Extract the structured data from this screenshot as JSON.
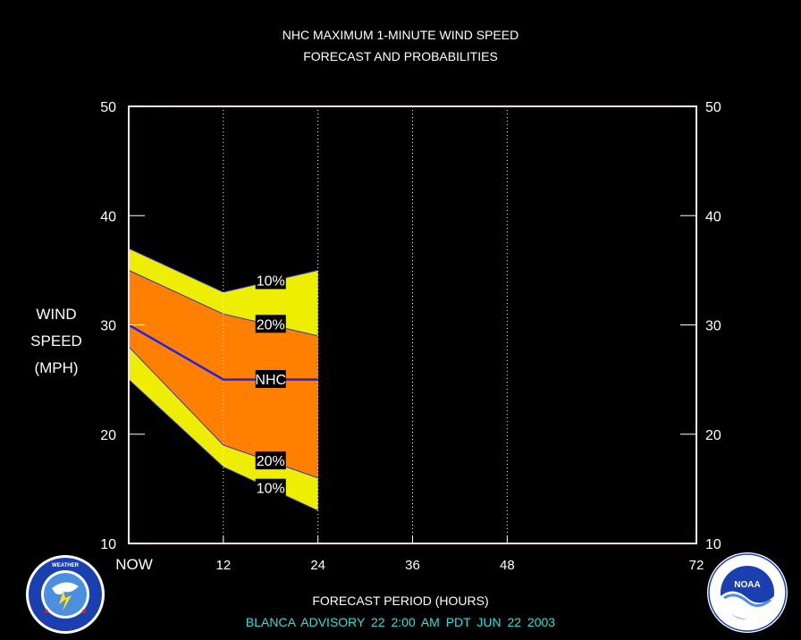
{
  "chart_data": {
    "type": "area",
    "title": "NHC MAXIMUM 1-MINUTE WIND SPEED",
    "subtitle": "FORECAST AND PROBABILITIES",
    "ylabel_lines": [
      "WIND",
      "SPEED",
      "(MPH)"
    ],
    "xlabel": "FORECAST PERIOD (HOURS)",
    "xlim": [
      0,
      72
    ],
    "ylim": [
      10,
      50
    ],
    "xticks": [
      {
        "value": 0,
        "label": "NOW"
      },
      {
        "value": 12,
        "label": "12"
      },
      {
        "value": 24,
        "label": "24"
      },
      {
        "value": 36,
        "label": "36"
      },
      {
        "value": 48,
        "label": "48"
      },
      {
        "value": 72,
        "label": "72"
      }
    ],
    "yticks": [
      10,
      20,
      30,
      40,
      50
    ],
    "vertical_gridlines": [
      12,
      24,
      36,
      48
    ],
    "x": [
      0,
      12,
      24
    ],
    "bands": [
      {
        "name": "10%",
        "lower": [
          25,
          17,
          13
        ],
        "upper": [
          37,
          33,
          35
        ],
        "color": "#eeee00"
      },
      {
        "name": "20%",
        "lower": [
          28,
          19,
          16
        ],
        "upper": [
          35,
          31,
          29
        ],
        "color": "#ff8000"
      }
    ],
    "series": [
      {
        "name": "NHC",
        "values": [
          30,
          25,
          25
        ],
        "color": "#2222ee"
      }
    ],
    "annotations": [
      {
        "text": "10%",
        "x": 18,
        "y": 34.1
      },
      {
        "text": "20%",
        "x": 18,
        "y": 30.1
      },
      {
        "text": "NHC",
        "x": 18,
        "y": 25.05
      },
      {
        "text": "20%",
        "x": 18,
        "y": 17.6
      },
      {
        "text": "10%",
        "x": 18,
        "y": 15.1
      }
    ]
  },
  "advisory": "BLANCA   ADVISORY  22  2:00  AM  PDT  JUN  22  2003",
  "logos": {
    "left": "noaa-national-weather-service-seal",
    "right": "noaa-logo"
  }
}
